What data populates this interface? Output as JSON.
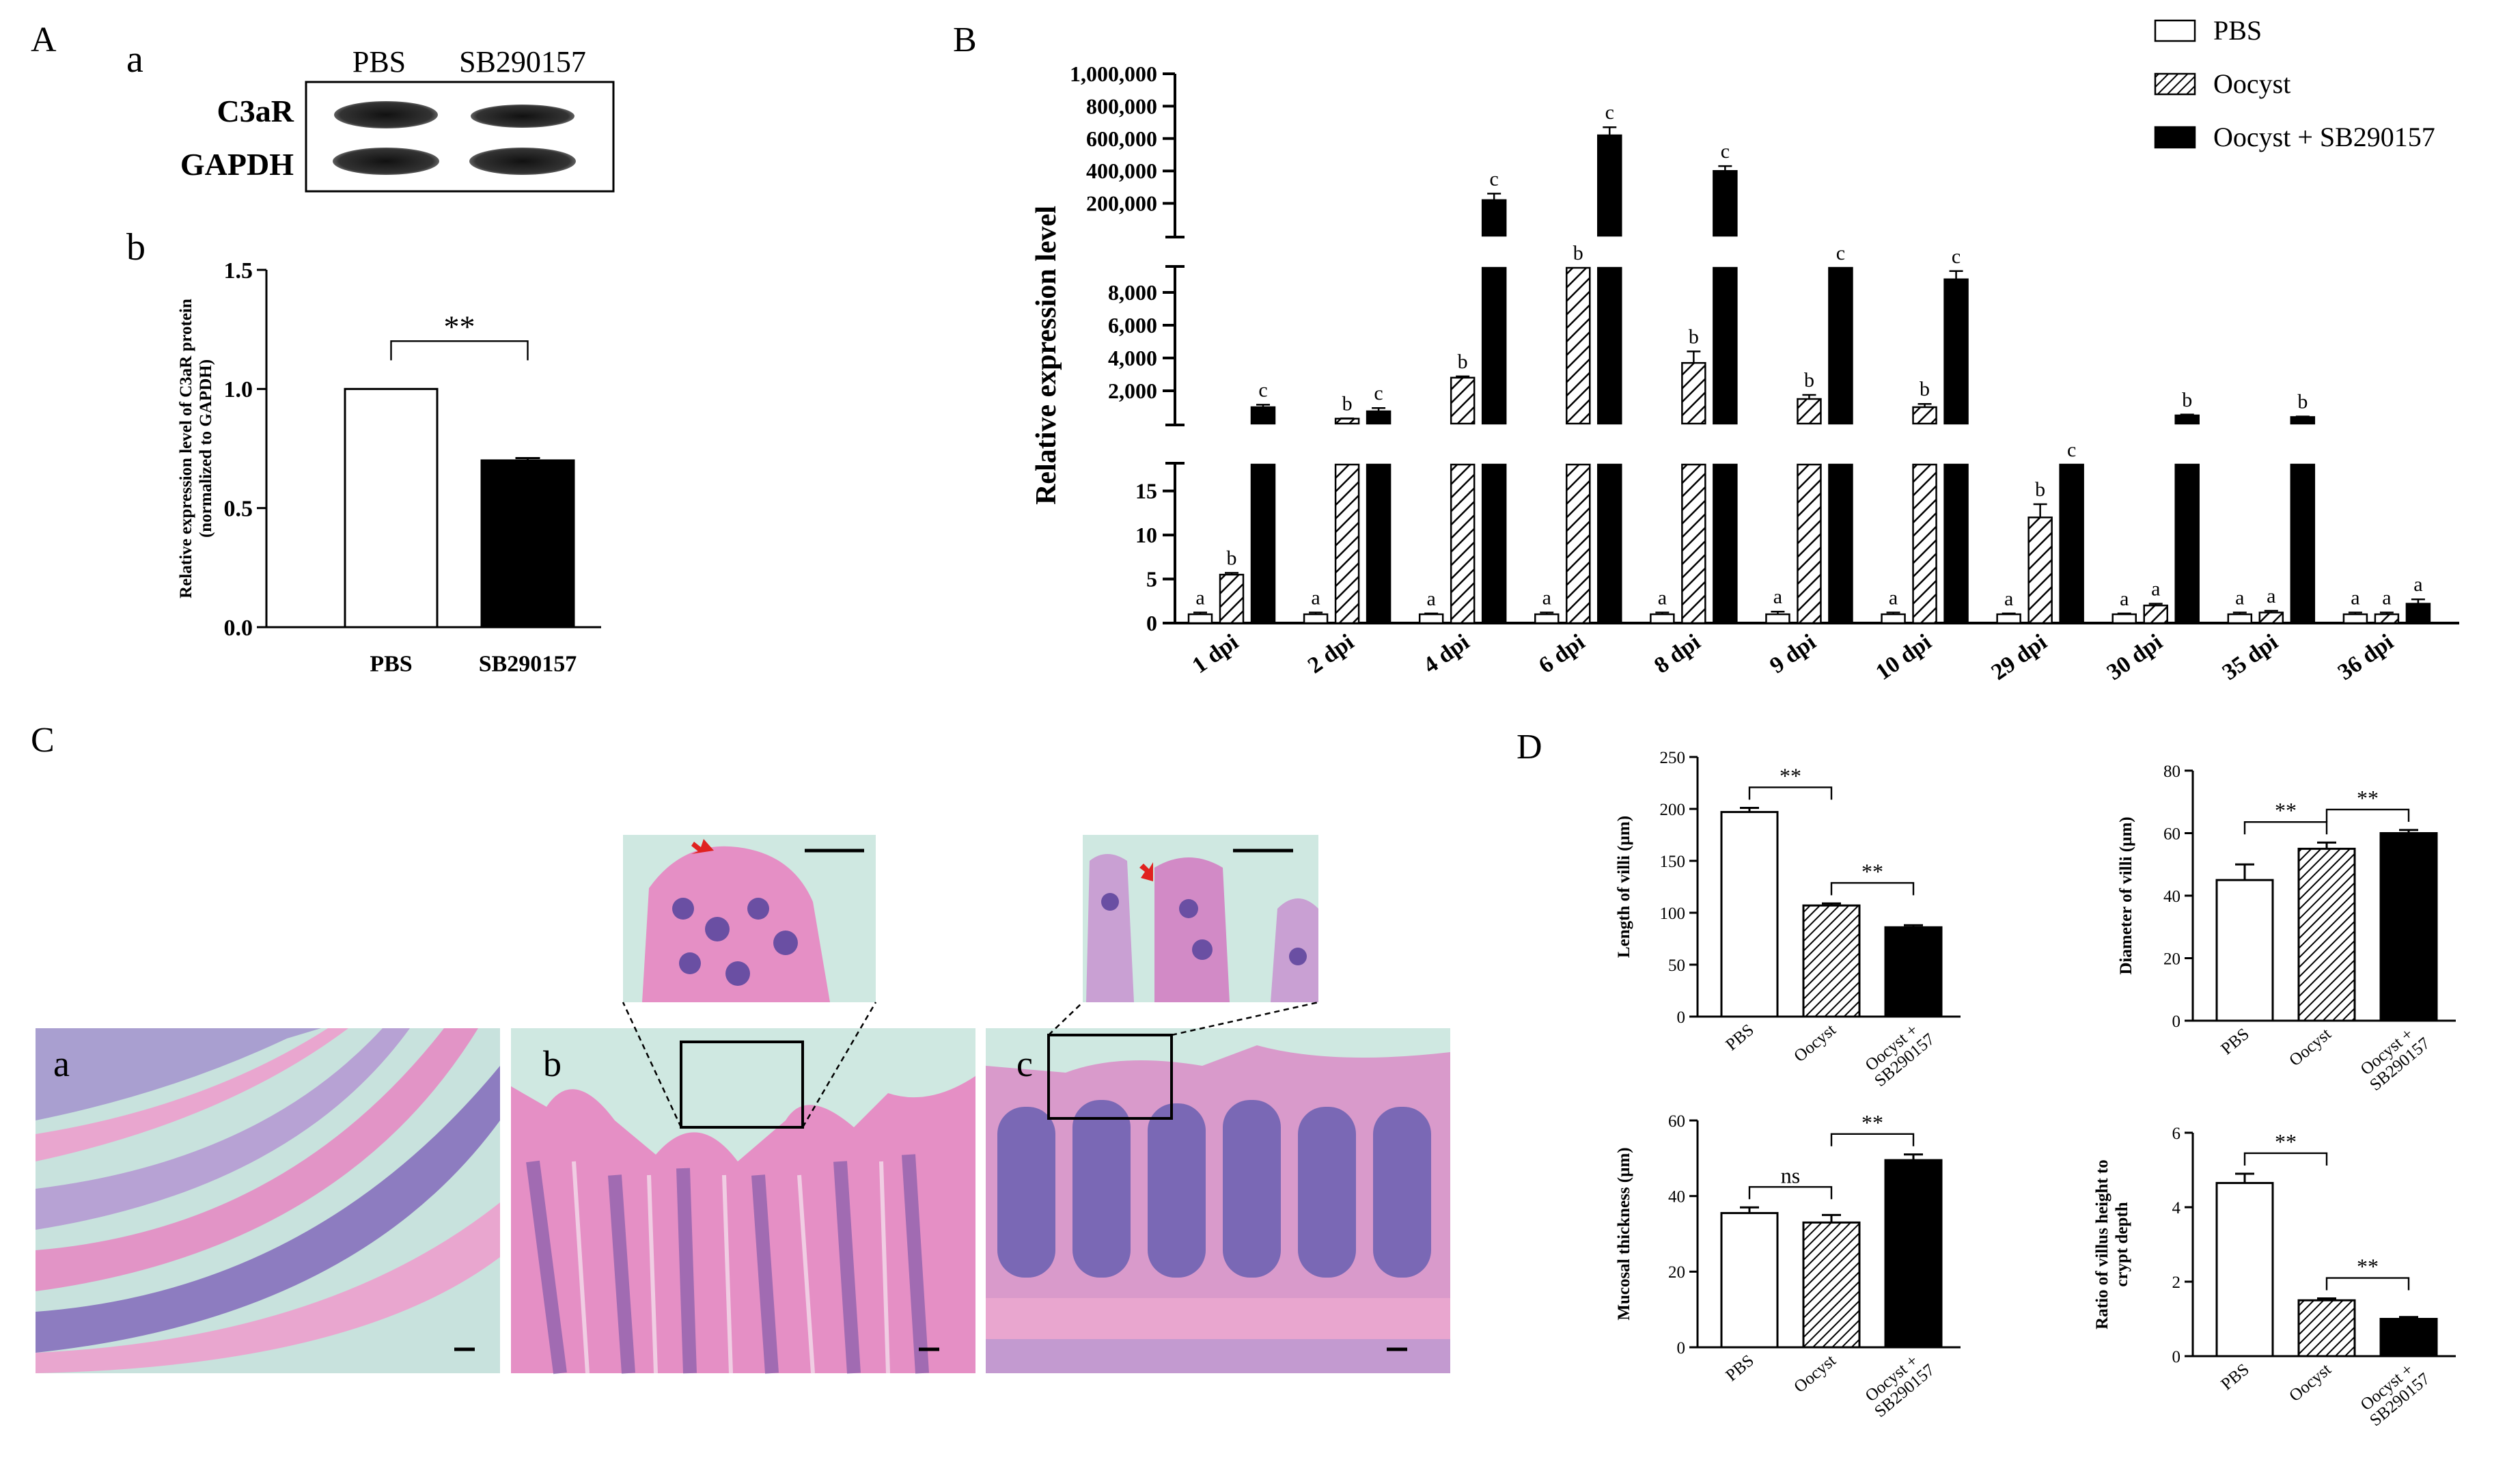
{
  "panel_labels": {
    "A": "A",
    "Aa": "a",
    "Ab": "b",
    "B": "B",
    "C": "C",
    "D": "D",
    "Ca": "a",
    "Cb": "b",
    "Cc": "c"
  },
  "colors": {
    "black": "#000000",
    "white": "#ffffff",
    "he_pink": "#e78fc1",
    "he_purple": "#6a4fa3",
    "lumen": "#bfe0da",
    "arrow_red": "#e0221f"
  },
  "blot": {
    "columns": [
      "PBS",
      "SB290157"
    ],
    "rows": [
      "C3aR",
      "GAPDH"
    ]
  },
  "chart_data": [
    {
      "id": "A-b",
      "type": "bar",
      "categories": [
        "PBS",
        "SB290157"
      ],
      "values": [
        1.0,
        0.7
      ],
      "errors": [
        0,
        0.01
      ],
      "fills": [
        "white",
        "black"
      ],
      "ylabel_lines": [
        "Relative expression level of C3aR protein",
        "(normalized to GAPDH)"
      ],
      "yticks": [
        "0.0",
        "0.5",
        "1.0",
        "1.5"
      ],
      "ylim": [
        0,
        1.5
      ],
      "significance": [
        {
          "from": 0,
          "to": 1,
          "label": "**"
        }
      ]
    },
    {
      "id": "B",
      "type": "bar",
      "title": "",
      "ylabel": "Relative expression level",
      "categories": [
        "1 dpi",
        "2 dpi",
        "4 dpi",
        "6 dpi",
        "8 dpi",
        "9 dpi",
        "10 dpi",
        "29 dpi",
        "30 dpi",
        "35 dpi",
        "36 dpi"
      ],
      "legend": [
        "PBS",
        "Oocyst",
        "Oocyst + SB290157"
      ],
      "legend_position": "top-right",
      "axis_breaks": true,
      "segments": [
        {
          "range": [
            0,
            18
          ],
          "ticks": [
            "0",
            "5",
            "10",
            "15"
          ]
        },
        {
          "range": [
            0,
            9500
          ],
          "ticks": [
            "2,000",
            "4,000",
            "6,000",
            "8,000"
          ]
        },
        {
          "range": [
            0,
            1000000
          ],
          "ticks": [
            "200,000",
            "400,000",
            "600,000",
            "800,000",
            "1,000,000"
          ]
        }
      ],
      "series": [
        {
          "name": "PBS",
          "fill": "white",
          "values": [
            1,
            1,
            1,
            1,
            1,
            1,
            1,
            1,
            1,
            1,
            1
          ],
          "errors": [
            0.2,
            0.2,
            0.1,
            0.2,
            0.2,
            0.3,
            0.2,
            0.1,
            0.1,
            0.2,
            0.2
          ],
          "letters": [
            "a",
            "a",
            "a",
            "a",
            "a",
            "a",
            "a",
            "a",
            "a",
            "a",
            "a"
          ]
        },
        {
          "name": "Oocyst",
          "fill": "hatched",
          "values": [
            5.5,
            300,
            2800,
            9500,
            3700,
            1500,
            1000,
            12,
            2,
            1.2,
            1
          ],
          "errors": [
            0.2,
            20,
            80,
            0,
            700,
            250,
            200,
            1.5,
            0.2,
            0.2,
            0.2
          ],
          "letters": [
            "b",
            "b",
            "b",
            "b",
            "b",
            "b",
            "b",
            "b",
            "a",
            "a",
            "a"
          ]
        },
        {
          "name": "Oocyst + SB290157",
          "fill": "black",
          "values": [
            1000,
            750,
            220000,
            620000,
            400000,
            9500,
            8800,
            18,
            500,
            400,
            2.2
          ],
          "errors": [
            150,
            200,
            40000,
            50000,
            30000,
            0,
            500,
            0,
            50,
            30,
            0.5
          ],
          "letters": [
            "c",
            "c",
            "c",
            "c",
            "c",
            "c",
            "c",
            "c",
            "b",
            "b",
            "a"
          ]
        }
      ]
    },
    {
      "id": "D-length",
      "type": "bar",
      "categories": [
        "PBS",
        "Oocyst",
        "Oocyst + SB290157"
      ],
      "values": [
        197,
        107,
        86
      ],
      "errors": [
        4,
        2,
        2
      ],
      "fills": [
        "white",
        "hatched",
        "black"
      ],
      "ylabel": "Length of villi (µm)",
      "yticks": [
        "0",
        "50",
        "100",
        "150",
        "200",
        "250"
      ],
      "ylim": [
        0,
        250
      ],
      "significance": [
        {
          "from": 0,
          "to": 1,
          "label": "**"
        },
        {
          "from": 1,
          "to": 2,
          "label": "**"
        }
      ]
    },
    {
      "id": "D-diameter",
      "type": "bar",
      "categories": [
        "PBS",
        "Oocyst",
        "Oocyst + SB290157"
      ],
      "values": [
        45,
        55,
        60
      ],
      "errors": [
        5,
        2,
        1
      ],
      "fills": [
        "white",
        "hatched",
        "black"
      ],
      "ylabel": "Diameter of villi (µm)",
      "yticks": [
        "0",
        "20",
        "40",
        "60",
        "80"
      ],
      "ylim": [
        0,
        80
      ],
      "significance": [
        {
          "from": 0,
          "to": 1,
          "label": "**"
        },
        {
          "from": 1,
          "to": 2,
          "label": "**"
        }
      ]
    },
    {
      "id": "D-mucosal",
      "type": "bar",
      "categories": [
        "PBS",
        "Oocyst",
        "Oocyst + SB290157"
      ],
      "values": [
        35.5,
        33,
        49.5
      ],
      "errors": [
        1.5,
        2,
        1.5
      ],
      "fills": [
        "white",
        "hatched",
        "black"
      ],
      "ylabel": "Mucosal thickness (µm)",
      "yticks": [
        "0",
        "20",
        "40",
        "60"
      ],
      "ylim": [
        0,
        60
      ],
      "significance": [
        {
          "from": 0,
          "to": 1,
          "label": "ns"
        },
        {
          "from": 1,
          "to": 2,
          "label": "**"
        }
      ]
    },
    {
      "id": "D-ratio",
      "type": "bar",
      "categories": [
        "PBS",
        "Oocyst",
        "Oocyst + SB290157"
      ],
      "values": [
        4.65,
        1.5,
        1.0
      ],
      "errors": [
        0.25,
        0.05,
        0.05
      ],
      "fills": [
        "white",
        "hatched",
        "black"
      ],
      "ylabel_lines": [
        "Ratio of villus height to",
        "crypt depth"
      ],
      "yticks": [
        "0",
        "2",
        "4",
        "6"
      ],
      "ylim": [
        0,
        6
      ],
      "significance": [
        {
          "from": 0,
          "to": 1,
          "label": "**"
        },
        {
          "from": 1,
          "to": 2,
          "label": "**"
        }
      ]
    }
  ]
}
